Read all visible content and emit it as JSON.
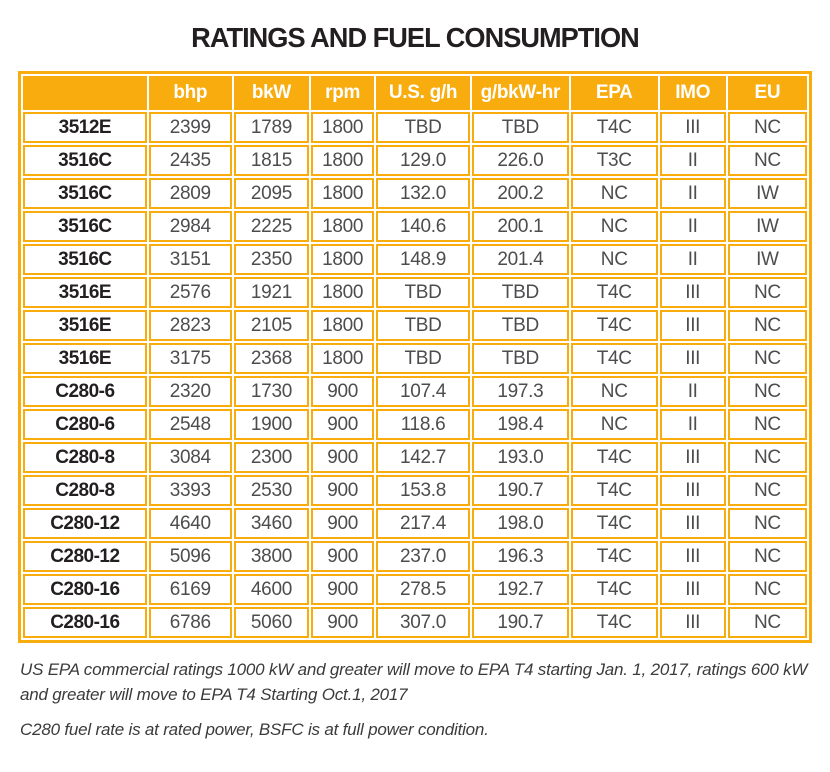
{
  "title": "RATINGS AND FUEL CONSUMPTION",
  "colors": {
    "accent_orange": "#F8AC0E",
    "header_text": "#FFFFFF",
    "body_text": "#4D4D4F",
    "model_text": "#231F20"
  },
  "table": {
    "columns": [
      "",
      "bhp",
      "bkW",
      "rpm",
      "U.S. g/h",
      "g/bkW-hr",
      "EPA",
      "IMO",
      "EU"
    ],
    "rows": [
      [
        "3512E",
        "2399",
        "1789",
        "1800",
        "TBD",
        "TBD",
        "T4C",
        "III",
        "NC"
      ],
      [
        "3516C",
        "2435",
        "1815",
        "1800",
        "129.0",
        "226.0",
        "T3C",
        "II",
        "NC"
      ],
      [
        "3516C",
        "2809",
        "2095",
        "1800",
        "132.0",
        "200.2",
        "NC",
        "II",
        "IW"
      ],
      [
        "3516C",
        "2984",
        "2225",
        "1800",
        "140.6",
        "200.1",
        "NC",
        "II",
        "IW"
      ],
      [
        "3516C",
        "3151",
        "2350",
        "1800",
        "148.9",
        "201.4",
        "NC",
        "II",
        "IW"
      ],
      [
        "3516E",
        "2576",
        "1921",
        "1800",
        "TBD",
        "TBD",
        "T4C",
        "III",
        "NC"
      ],
      [
        "3516E",
        "2823",
        "2105",
        "1800",
        "TBD",
        "TBD",
        "T4C",
        "III",
        "NC"
      ],
      [
        "3516E",
        "3175",
        "2368",
        "1800",
        "TBD",
        "TBD",
        "T4C",
        "III",
        "NC"
      ],
      [
        "C280-6",
        "2320",
        "1730",
        "900",
        "107.4",
        "197.3",
        "NC",
        "II",
        "NC"
      ],
      [
        "C280-6",
        "2548",
        "1900",
        "900",
        "118.6",
        "198.4",
        "NC",
        "II",
        "NC"
      ],
      [
        "C280-8",
        "3084",
        "2300",
        "900",
        "142.7",
        "193.0",
        "T4C",
        "III",
        "NC"
      ],
      [
        "C280-8",
        "3393",
        "2530",
        "900",
        "153.8",
        "190.7",
        "T4C",
        "III",
        "NC"
      ],
      [
        "C280-12",
        "4640",
        "3460",
        "900",
        "217.4",
        "198.0",
        "T4C",
        "III",
        "NC"
      ],
      [
        "C280-12",
        "5096",
        "3800",
        "900",
        "237.0",
        "196.3",
        "T4C",
        "III",
        "NC"
      ],
      [
        "C280-16",
        "6169",
        "4600",
        "900",
        "278.5",
        "192.7",
        "T4C",
        "III",
        "NC"
      ],
      [
        "C280-16",
        "6786",
        "5060",
        "900",
        "307.0",
        "190.7",
        "T4C",
        "III",
        "NC"
      ]
    ]
  },
  "footnotes": [
    "US EPA commercial ratings 1000 kW and greater will move to EPA T4 starting Jan. 1, 2017, ratings 600 kW and greater will move to EPA T4 Starting Oct.1, 2017",
    "C280 fuel rate is at rated power, BSFC is at full power condition."
  ]
}
